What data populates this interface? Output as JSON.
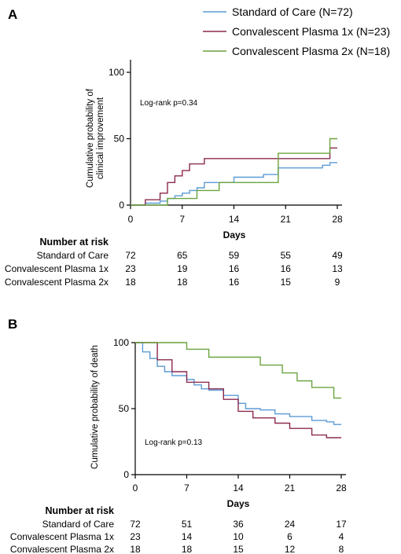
{
  "legend": [
    {
      "label": "Standard of Care (N=72)",
      "color": "#5b9bd5"
    },
    {
      "label": "Convalescent Plasma 1x (N=23)",
      "color": "#8b2a4f"
    },
    {
      "label": "Convalescent Plasma 2x (N=18)",
      "color": "#6aa33f"
    }
  ],
  "colors": {
    "soc": "#5b9bd5",
    "cp1": "#8b2a4f",
    "cp2": "#6aa33f"
  },
  "risk_table": {
    "header": "Number at risk",
    "rows": [
      "Standard of Care",
      "Convalescent Plasma 1x",
      "Convalescent Plasma 2x"
    ]
  },
  "chart_data": [
    {
      "panel": "A",
      "type": "line",
      "step": true,
      "xlabel": "Days",
      "ylabel": "Cumulative probability of clinical improvement",
      "ylabel_lines": [
        "Cumulative probability of",
        "clinical improvement"
      ],
      "annotation": "Log-rank p=0.34",
      "xlim": [
        0,
        28
      ],
      "ylim": [
        0,
        100
      ],
      "xticks": [
        0,
        7,
        14,
        21,
        28
      ],
      "yticks": [
        0,
        50,
        100
      ],
      "series": [
        {
          "name": "Standard of Care (N=72)",
          "key": "soc",
          "x": [
            0,
            2,
            4,
            5,
            6,
            7,
            8,
            9,
            10,
            14,
            18,
            20,
            26,
            27,
            28
          ],
          "y": [
            0,
            1.5,
            3,
            5,
            7,
            9,
            11,
            13,
            17,
            21,
            23,
            28,
            30,
            32,
            32
          ]
        },
        {
          "name": "Convalescent Plasma 1x (N=23)",
          "key": "cp1",
          "x": [
            0,
            2,
            4,
            5,
            6,
            7,
            8,
            10,
            20,
            27,
            28
          ],
          "y": [
            0,
            4,
            9,
            17,
            22,
            26,
            31,
            35,
            35,
            43,
            43
          ]
        },
        {
          "name": "Convalescent Plasma 2x (N=18)",
          "key": "cp2",
          "x": [
            0,
            5,
            9,
            12,
            20,
            27,
            28
          ],
          "y": [
            0,
            5,
            11,
            17,
            39,
            50,
            50
          ]
        }
      ],
      "at_risk": {
        "soc": [
          72,
          65,
          59,
          55,
          49
        ],
        "cp1": [
          23,
          19,
          16,
          16,
          13
        ],
        "cp2": [
          18,
          18,
          16,
          15,
          9
        ]
      }
    },
    {
      "panel": "B",
      "type": "line",
      "step": true,
      "xlabel": "Days",
      "ylabel": "Cumulative probability of death",
      "ylabel_lines": [
        "Cumulative probability of death"
      ],
      "annotation": "Log-rank p=0.13",
      "xlim": [
        0,
        28
      ],
      "ylim": [
        0,
        100
      ],
      "xticks": [
        0,
        7,
        14,
        21,
        28
      ],
      "yticks": [
        0,
        50,
        100
      ],
      "series": [
        {
          "name": "Standard of Care (N=72)",
          "key": "soc",
          "x": [
            0,
            1,
            2,
            3,
            4,
            5,
            7,
            8,
            9,
            10,
            12,
            14,
            15,
            17,
            19,
            21,
            24,
            26,
            27,
            28
          ],
          "y": [
            100,
            93,
            88,
            82,
            78,
            75,
            72,
            68,
            65,
            64,
            60,
            54,
            50,
            49,
            46,
            44,
            41,
            40,
            38,
            38
          ]
        },
        {
          "name": "Convalescent Plasma 1x (N=23)",
          "key": "cp1",
          "x": [
            0,
            3,
            5,
            7,
            10,
            12,
            14,
            16,
            19,
            21,
            24,
            26,
            28
          ],
          "y": [
            100,
            87,
            78,
            70,
            65,
            57,
            48,
            43,
            39,
            35,
            30,
            28,
            28
          ]
        },
        {
          "name": "Convalescent Plasma 2x (N=18)",
          "key": "cp2",
          "x": [
            0,
            7,
            10,
            17,
            20,
            22,
            24,
            27,
            28
          ],
          "y": [
            100,
            95,
            89,
            83,
            77,
            71,
            66,
            58,
            58
          ]
        }
      ],
      "at_risk": {
        "soc": [
          72,
          51,
          36,
          24,
          17
        ],
        "cp1": [
          23,
          14,
          10,
          6,
          4
        ],
        "cp2": [
          18,
          18,
          15,
          12,
          8
        ]
      }
    }
  ]
}
